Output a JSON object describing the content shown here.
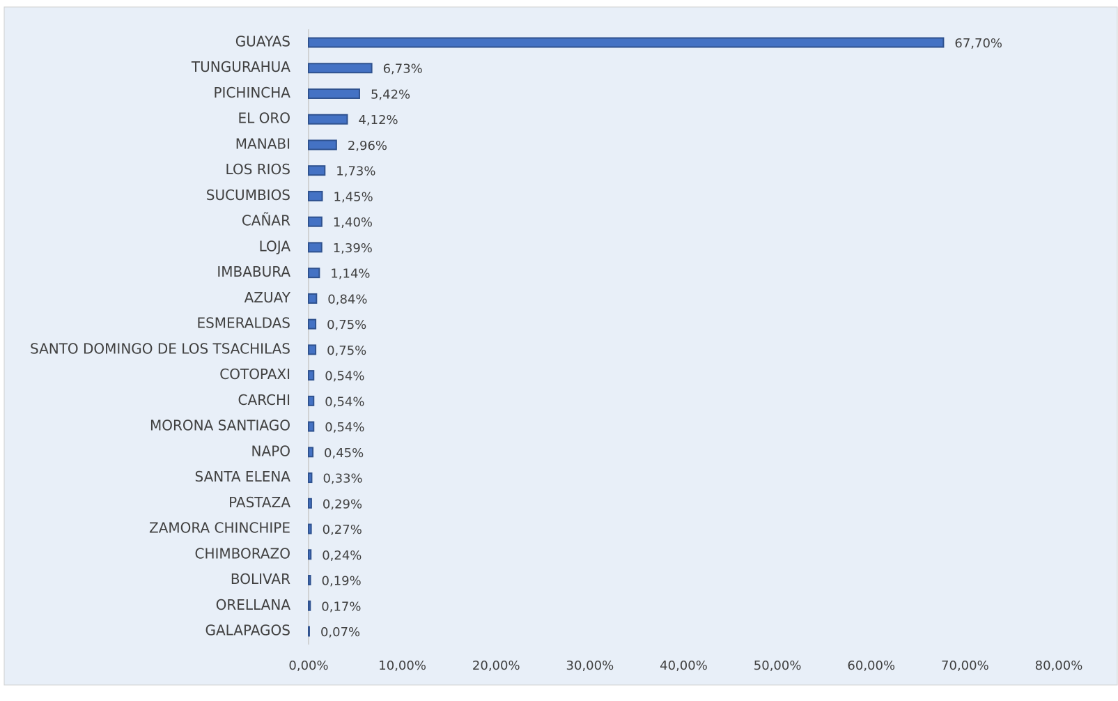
{
  "chart_data": {
    "type": "hbar",
    "categories": [
      "GUAYAS",
      "TUNGURAHUA",
      "PICHINCHA",
      "EL ORO",
      "MANABI",
      "LOS RIOS",
      "SUCUMBIOS",
      "CAÑAR",
      "LOJA",
      "IMBABURA",
      "AZUAY",
      "ESMERALDAS",
      "SANTO DOMINGO DE LOS TSACHILAS",
      "COTOPAXI",
      "CARCHI",
      "MORONA SANTIAGO",
      "NAPO",
      "SANTA ELENA",
      "PASTAZA",
      "ZAMORA CHINCHIPE",
      "CHIMBORAZO",
      "BOLIVAR",
      "ORELLANA",
      "GALAPAGOS"
    ],
    "values": [
      67.7,
      6.73,
      5.42,
      4.12,
      2.96,
      1.73,
      1.45,
      1.4,
      1.39,
      1.14,
      0.84,
      0.75,
      0.75,
      0.54,
      0.54,
      0.54,
      0.45,
      0.33,
      0.29,
      0.27,
      0.24,
      0.19,
      0.17,
      0.07
    ],
    "value_labels": [
      "67,70%",
      "6,73%",
      "5,42%",
      "4,12%",
      "2,96%",
      "1,73%",
      "1,45%",
      "1,40%",
      "1,39%",
      "1,14%",
      "0,84%",
      "0,75%",
      "0,75%",
      "0,54%",
      "0,54%",
      "0,54%",
      "0,45%",
      "0,33%",
      "0,29%",
      "0,27%",
      "0,24%",
      "0,19%",
      "0,17%",
      "0,07%"
    ],
    "color": "#4472c4",
    "xlim": [
      0,
      80
    ],
    "xticks": [
      {
        "value": 0,
        "label": "0,00%"
      },
      {
        "value": 10,
        "label": "10,00%"
      },
      {
        "value": 20,
        "label": "20,00%"
      },
      {
        "value": 30,
        "label": "30,00%"
      },
      {
        "value": 40,
        "label": "40,00%"
      },
      {
        "value": 50,
        "label": "50,00%"
      },
      {
        "value": 60,
        "label": "60,00%"
      },
      {
        "value": 70,
        "label": "70,00%"
      },
      {
        "value": 80,
        "label": "80,00%"
      }
    ],
    "grid": false
  }
}
